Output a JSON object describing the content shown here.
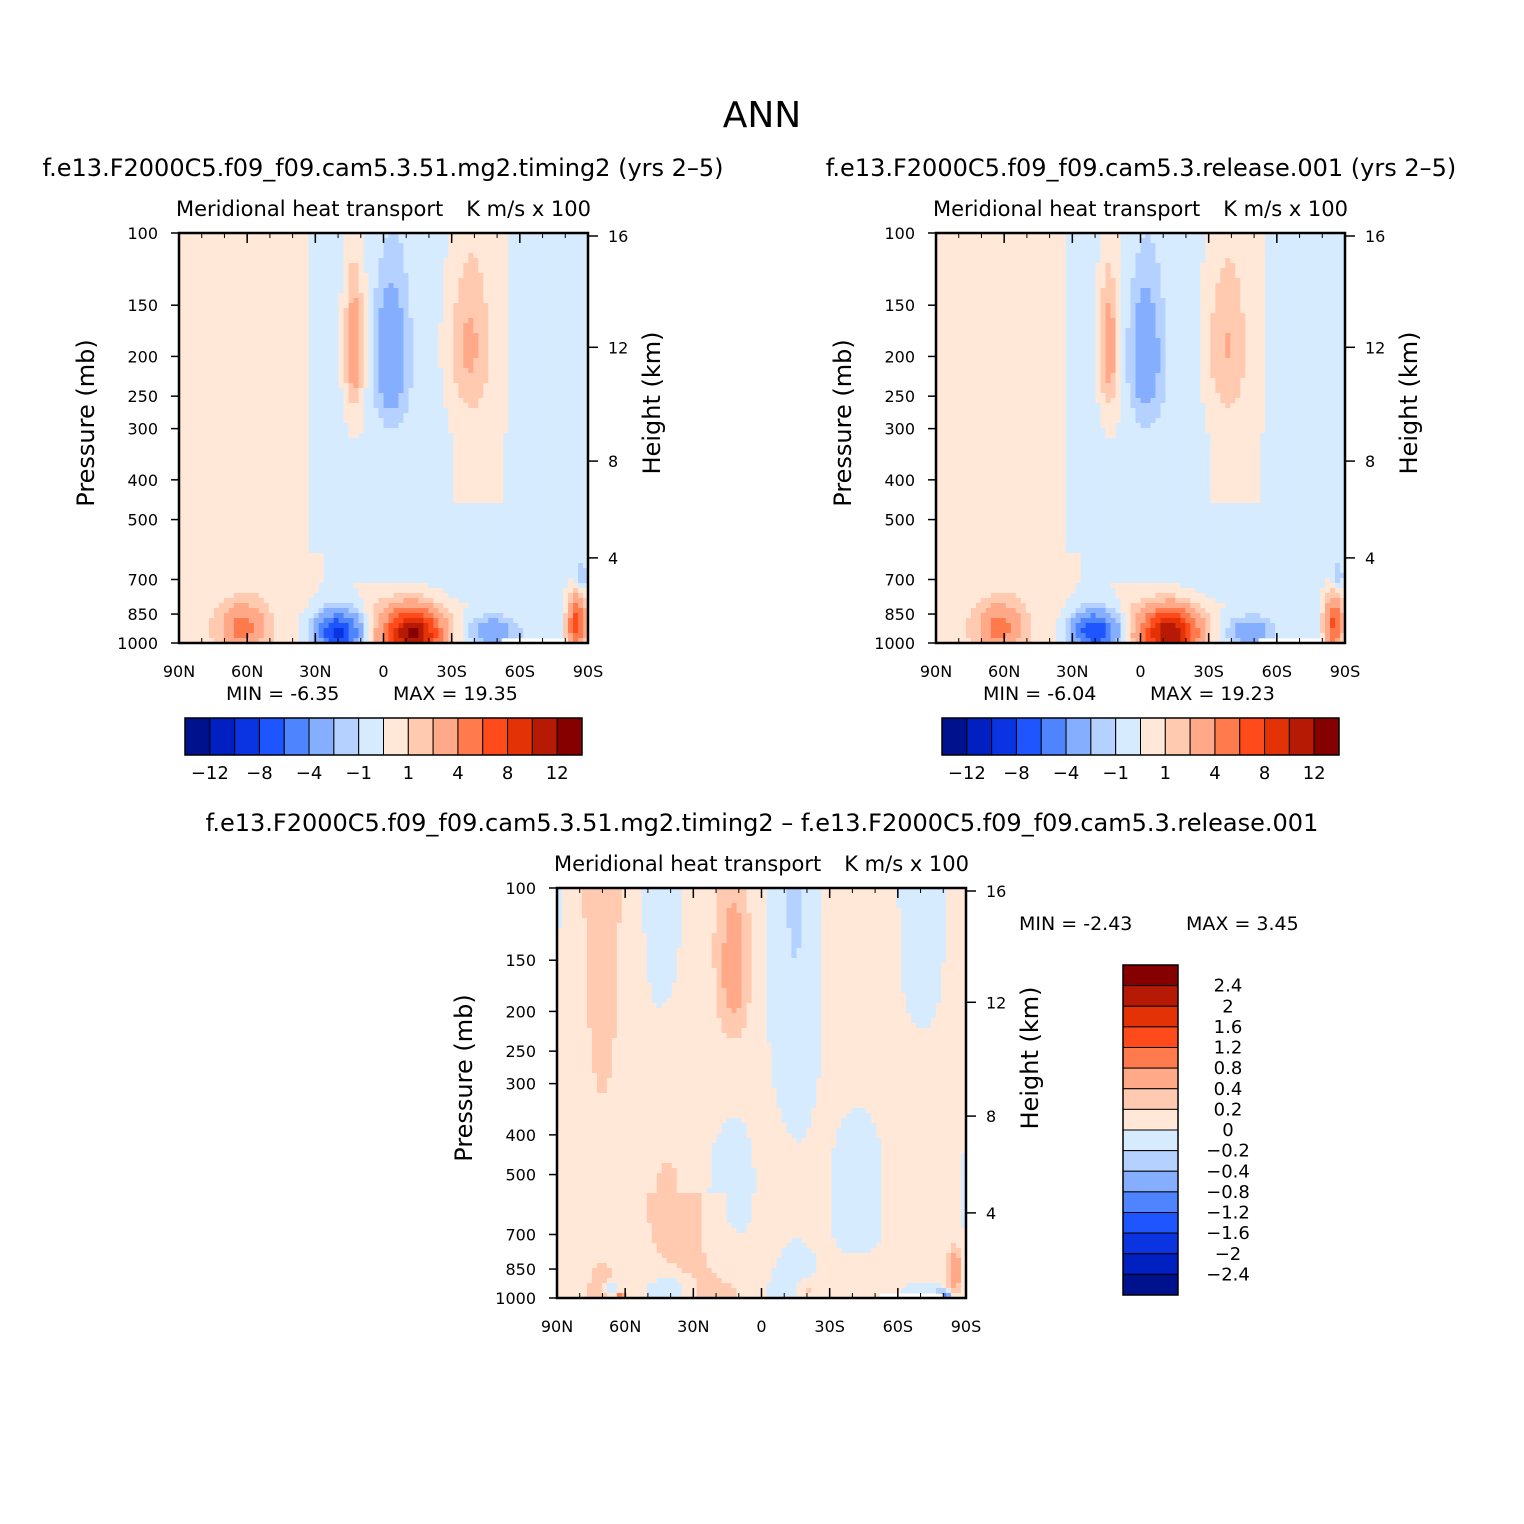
{
  "main_title": "ANN",
  "colors": {
    "neg": [
      "#d7ebff",
      "#b4d1ff",
      "#86aeff",
      "#4f84ff",
      "#1e55ff",
      "#0a33e1",
      "#0020c1",
      "#00118d"
    ],
    "pos": [
      "#ffe8d8",
      "#ffcab0",
      "#ffa989",
      "#ff7a4c",
      "#ff4a1c",
      "#e23206",
      "#b61a04",
      "#870000"
    ]
  },
  "chart_data": [
    {
      "id": "panel-top-left",
      "type": "heatmap",
      "title": "f.e13.F2000C5.f09_f09.cam5.3.51.mg2.timing2 (yrs 2–5)",
      "left_subtitle": "Meridional heat transport",
      "right_subtitle": "K m/s x 100",
      "ylabel": "Pressure (mb)",
      "y2label": "Height (km)",
      "x_ticks": [
        "90N",
        "60N",
        "30N",
        "0",
        "30S",
        "60S",
        "90S"
      ],
      "y_ticks": [
        "100",
        "150",
        "200",
        "250",
        "300",
        "400",
        "500",
        "700",
        "850",
        "1000"
      ],
      "y2_ticks": [
        "16",
        "12",
        "8",
        "4"
      ],
      "min_text": "MIN =   -6.35",
      "max_text": "MAX =   19.35",
      "min": -6.35,
      "max": 19.35,
      "colorbar_labels": [
        "−12",
        "−8",
        "−4",
        "−1",
        "1",
        "4",
        "8",
        "12"
      ],
      "blobs": [
        {
          "lat": 62,
          "p": 920,
          "wl": 9,
          "wp": 110,
          "v": 4.5
        },
        {
          "lat": 20,
          "p": 940,
          "wl": 10,
          "wp": 100,
          "v": -8.5
        },
        {
          "lat": -13,
          "p": 950,
          "wl": 12,
          "wp": 130,
          "v": 12.5
        },
        {
          "lat": -48,
          "p": 940,
          "wl": 10,
          "wp": 80,
          "v": -3.5
        },
        {
          "lat": -85,
          "p": 900,
          "wl": 4,
          "wp": 130,
          "v": 7.0
        },
        {
          "lat": -87,
          "p": 690,
          "wl": 3,
          "wp": 60,
          "v": -2.0
        },
        {
          "lat": 13,
          "p": 190,
          "wl": 4,
          "wp": 70,
          "v": 3.5
        },
        {
          "lat": -3,
          "p": 200,
          "wl": 7,
          "wp": 80,
          "v": -3.5
        },
        {
          "lat": -37,
          "p": 190,
          "wl": 9,
          "wp": 70,
          "v": 1.8
        }
      ]
    },
    {
      "id": "panel-top-right",
      "type": "heatmap",
      "title": "f.e13.F2000C5.f09_f09.cam5.3.release.001 (yrs 2–5)",
      "left_subtitle": "Meridional heat transport",
      "right_subtitle": "K m/s x 100",
      "ylabel": "Pressure (mb)",
      "y2label": "Height (km)",
      "x_ticks": [
        "90N",
        "60N",
        "30N",
        "0",
        "30S",
        "60S",
        "90S"
      ],
      "y_ticks": [
        "100",
        "150",
        "200",
        "250",
        "300",
        "400",
        "500",
        "700",
        "850",
        "1000"
      ],
      "y2_ticks": [
        "16",
        "12",
        "8",
        "4"
      ],
      "min_text": "MIN =   -6.04",
      "max_text": "MAX =   19.23",
      "min": -6.04,
      "max": 19.23,
      "colorbar_labels": [
        "−12",
        "−8",
        "−4",
        "−1",
        "1",
        "4",
        "8",
        "12"
      ],
      "blobs": [
        {
          "lat": 62,
          "p": 920,
          "wl": 9,
          "wp": 110,
          "v": 4.5
        },
        {
          "lat": 20,
          "p": 940,
          "wl": 10,
          "wp": 100,
          "v": -8.0
        },
        {
          "lat": -13,
          "p": 950,
          "wl": 12,
          "wp": 130,
          "v": 12.0
        },
        {
          "lat": -48,
          "p": 940,
          "wl": 10,
          "wp": 80,
          "v": -3.2
        },
        {
          "lat": -85,
          "p": 900,
          "wl": 4,
          "wp": 130,
          "v": 6.5
        },
        {
          "lat": -87,
          "p": 690,
          "wl": 3,
          "wp": 60,
          "v": -1.8
        },
        {
          "lat": 14,
          "p": 190,
          "wl": 4,
          "wp": 70,
          "v": 3.2
        },
        {
          "lat": -2,
          "p": 200,
          "wl": 7,
          "wp": 80,
          "v": -3.2
        },
        {
          "lat": -37,
          "p": 190,
          "wl": 9,
          "wp": 70,
          "v": 1.6
        }
      ]
    },
    {
      "id": "panel-bottom-diff",
      "type": "heatmap",
      "title": "f.e13.F2000C5.f09_f09.cam5.3.51.mg2.timing2 – f.e13.F2000C5.f09_f09.cam5.3.release.001",
      "left_subtitle": "Meridional heat transport",
      "right_subtitle": "K m/s x 100",
      "ylabel": "Pressure (mb)",
      "y2label": "Height (km)",
      "x_ticks": [
        "90N",
        "60N",
        "30N",
        "0",
        "30S",
        "60S",
        "90S"
      ],
      "y_ticks": [
        "100",
        "150",
        "200",
        "250",
        "300",
        "400",
        "500",
        "700",
        "850",
        "1000"
      ],
      "y2_ticks": [
        "16",
        "12",
        "8",
        "4"
      ],
      "min_text": "MIN =   -2.43",
      "max_text": "MAX =    3.45",
      "min": -2.43,
      "max": 3.45,
      "colorbar_labels": [
        "2.4",
        "2",
        "1.6",
        "1.2",
        "0.8",
        "0.4",
        "0.2",
        "0",
        "−0.2",
        "−0.4",
        "−0.8",
        "−1.2",
        "−1.6",
        "−2",
        "−2.4"
      ],
      "blobs": [
        {
          "lat": 12,
          "p": 160,
          "wl": 6,
          "wp": 60,
          "v": 0.45
        },
        {
          "lat": 66,
          "p": 960,
          "wl": 3,
          "wp": 40,
          "v": -0.5
        },
        {
          "lat": 62,
          "p": 990,
          "wl": 2,
          "wp": 20,
          "v": 1.2
        },
        {
          "lat": -85,
          "p": 860,
          "wl": 3,
          "wp": 100,
          "v": 0.7
        },
        {
          "lat": -80,
          "p": 985,
          "wl": 3,
          "wp": 25,
          "v": -1.0
        },
        {
          "lat": -20,
          "p": 960,
          "wl": 6,
          "wp": 60,
          "v": 0.35
        },
        {
          "lat": 40,
          "p": 950,
          "wl": 8,
          "wp": 60,
          "v": -0.3
        }
      ]
    }
  ]
}
